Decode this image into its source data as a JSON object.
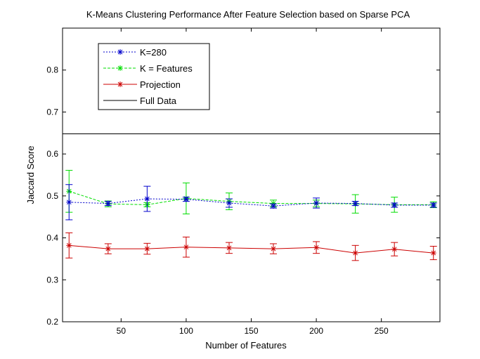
{
  "chart_data": {
    "type": "line",
    "title": "K-Means Clustering Performance After Feature Selection based on Sparse PCA",
    "xlabel": "Number of Features",
    "ylabel": "Jaccard Score",
    "xlim": [
      5,
      295
    ],
    "ylim": [
      0.2,
      0.9
    ],
    "xticks": [
      50,
      100,
      150,
      200,
      250
    ],
    "yticks": [
      0.2,
      0.3,
      0.4,
      0.5,
      0.6,
      0.7,
      0.8
    ],
    "grid": false,
    "legend_position": "top-left",
    "reference_lines": [
      {
        "name": "Full Data",
        "y": 0.648,
        "color": "#000000"
      }
    ],
    "series": [
      {
        "name": "K=280",
        "color": "#0000cc",
        "line_style": "dotted",
        "marker": "asterisk",
        "x": [
          10,
          40,
          70,
          100,
          133,
          167,
          200,
          230,
          260,
          290
        ],
        "y": [
          0.485,
          0.482,
          0.493,
          0.492,
          0.483,
          0.476,
          0.483,
          0.482,
          0.478,
          0.478
        ],
        "err": [
          0.042,
          0.005,
          0.03,
          0.005,
          0.01,
          0.005,
          0.012,
          0.005,
          0.005,
          0.005
        ]
      },
      {
        "name": "K = Features",
        "color": "#00dd00",
        "line_style": "dashed",
        "marker": "asterisk",
        "x": [
          10,
          40,
          70,
          100,
          133,
          167,
          200,
          230,
          260,
          290
        ],
        "y": [
          0.511,
          0.481,
          0.479,
          0.494,
          0.487,
          0.482,
          0.482,
          0.481,
          0.479,
          0.479
        ],
        "err": [
          0.05,
          0.007,
          0.005,
          0.037,
          0.02,
          0.008,
          0.008,
          0.022,
          0.018,
          0.007
        ]
      },
      {
        "name": "Projection",
        "color": "#cc0000",
        "line_style": "solid",
        "marker": "asterisk",
        "x": [
          10,
          40,
          70,
          100,
          133,
          167,
          200,
          230,
          260,
          290
        ],
        "y": [
          0.382,
          0.374,
          0.374,
          0.378,
          0.376,
          0.374,
          0.377,
          0.364,
          0.373,
          0.364
        ],
        "err": [
          0.03,
          0.012,
          0.013,
          0.024,
          0.013,
          0.012,
          0.014,
          0.018,
          0.016,
          0.016
        ]
      }
    ]
  }
}
